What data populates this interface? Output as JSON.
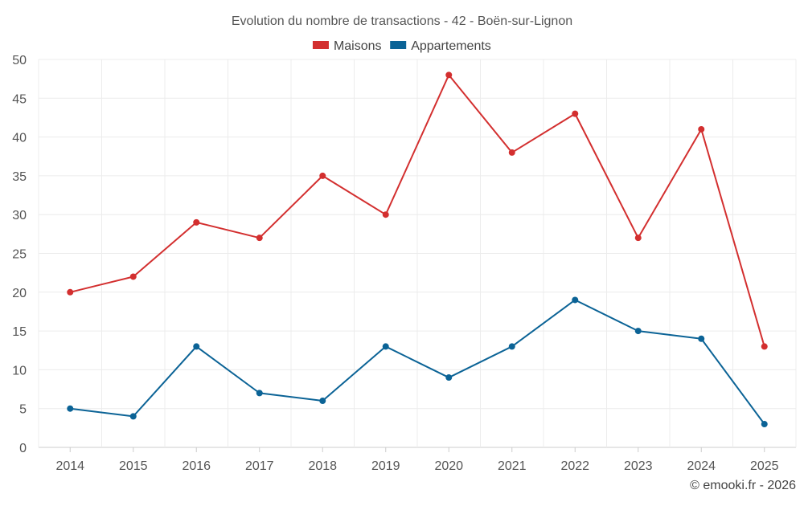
{
  "chart_data": {
    "type": "line",
    "title": "Evolution du nombre de transactions - 42 - Boën-sur-Lignon",
    "categories": [
      "2014",
      "2015",
      "2016",
      "2017",
      "2018",
      "2019",
      "2020",
      "2021",
      "2022",
      "2023",
      "2024",
      "2025"
    ],
    "series": [
      {
        "name": "Maisons",
        "color": "#d32f2f",
        "values": [
          20,
          22,
          29,
          27,
          35,
          30,
          48,
          38,
          43,
          27,
          41,
          13
        ]
      },
      {
        "name": "Appartements",
        "color": "#0b6396",
        "values": [
          5,
          4,
          13,
          7,
          6,
          13,
          9,
          13,
          19,
          15,
          14,
          3
        ]
      }
    ],
    "ylim": [
      0,
      50
    ],
    "yticks": [
      0,
      5,
      10,
      15,
      20,
      25,
      30,
      35,
      40,
      45,
      50
    ],
    "xlabel": "",
    "ylabel": "",
    "grid": true,
    "legend": "top-center"
  },
  "credit": "© emooki.fr - 2026"
}
